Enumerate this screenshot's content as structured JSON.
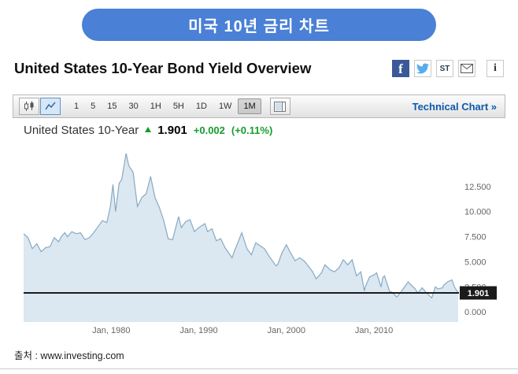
{
  "banner": {
    "title": "미국 10년 금리 차트",
    "bg_color": "#4a80d5"
  },
  "header": {
    "title": "United States 10-Year Bond Yield Overview",
    "icons": {
      "facebook_glyph": "f",
      "stocktwits_glyph": "ST",
      "info_glyph": "i"
    }
  },
  "toolbar": {
    "intervals": [
      "1",
      "5",
      "15",
      "30",
      "1H",
      "5H",
      "1D",
      "1W",
      "1M"
    ],
    "selected_interval": "1M",
    "technical_chart_label": "Technical Chart »"
  },
  "quote": {
    "name": "United States 10-Year",
    "last": "1.901",
    "change": "+0.002",
    "change_pct": "(+0.11%)",
    "direction": "up",
    "up_color": "#169d2c"
  },
  "chart_data": {
    "type": "area",
    "title": "United States 10-Year",
    "xlabel": "",
    "ylabel": "",
    "xlim": [
      1970,
      2019.7
    ],
    "ylim": [
      -1,
      16.8
    ],
    "x": [
      1970.0,
      1970.5,
      1971.0,
      1971.5,
      1972.0,
      1972.5,
      1973.0,
      1973.5,
      1974.0,
      1974.3,
      1974.7,
      1975.0,
      1975.5,
      1976.0,
      1976.5,
      1977.0,
      1977.5,
      1978.0,
      1978.5,
      1979.0,
      1979.5,
      1979.9,
      1980.2,
      1980.5,
      1980.9,
      1981.2,
      1981.7,
      1982.0,
      1982.5,
      1983.0,
      1983.5,
      1984.0,
      1984.5,
      1985.0,
      1985.5,
      1986.0,
      1986.5,
      1987.0,
      1987.7,
      1988.0,
      1988.5,
      1989.0,
      1989.5,
      1990.0,
      1990.7,
      1991.0,
      1991.5,
      1992.0,
      1992.5,
      1993.0,
      1993.8,
      1994.0,
      1994.9,
      1995.5,
      1996.0,
      1996.5,
      1997.0,
      1997.5,
      1998.0,
      1998.8,
      1999.0,
      1999.5,
      2000.0,
      2000.4,
      2001.0,
      2001.5,
      2002.0,
      2002.3,
      2003.0,
      2003.4,
      2004.0,
      2004.4,
      2005.0,
      2005.5,
      2006.0,
      2006.5,
      2007.0,
      2007.5,
      2008.0,
      2008.5,
      2008.9,
      2009.0,
      2009.5,
      2010.0,
      2010.3,
      2010.8,
      2011.0,
      2011.2,
      2011.8,
      2012.0,
      2012.6,
      2013.0,
      2013.9,
      2014.0,
      2014.7,
      2015.0,
      2015.5,
      2016.0,
      2016.6,
      2017.0,
      2017.3,
      2017.8,
      2018.0,
      2018.4,
      2018.9,
      2019.2,
      2019.6
    ],
    "y": [
      7.8,
      7.4,
      6.3,
      6.8,
      6.0,
      6.4,
      6.5,
      7.4,
      7.0,
      7.5,
      7.9,
      7.5,
      8.0,
      7.8,
      7.9,
      7.2,
      7.4,
      7.9,
      8.5,
      9.1,
      8.9,
      10.5,
      12.7,
      10.0,
      12.8,
      13.2,
      15.8,
      14.6,
      13.9,
      10.5,
      11.4,
      11.8,
      13.5,
      11.4,
      10.4,
      9.1,
      7.3,
      7.2,
      9.5,
      8.4,
      9.0,
      9.2,
      8.0,
      8.4,
      8.8,
      8.0,
      8.3,
      7.1,
      7.3,
      6.4,
      5.4,
      5.9,
      7.9,
      6.3,
      5.7,
      6.9,
      6.6,
      6.3,
      5.6,
      4.6,
      4.7,
      5.9,
      6.7,
      6.0,
      5.1,
      5.4,
      5.1,
      4.8,
      4.0,
      3.3,
      3.9,
      4.7,
      4.2,
      4.0,
      4.4,
      5.2,
      4.7,
      5.2,
      3.6,
      4.0,
      2.1,
      2.5,
      3.5,
      3.7,
      3.9,
      2.5,
      3.4,
      3.6,
      2.0,
      2.0,
      1.5,
      1.9,
      3.0,
      2.9,
      2.3,
      1.9,
      2.4,
      1.9,
      1.4,
      2.5,
      2.3,
      2.4,
      2.7,
      3.0,
      3.2,
      2.5,
      1.901
    ],
    "x_tick_values": [
      1980,
      1990,
      2000,
      2010
    ],
    "x_tick_labels": [
      "Jan, 1980",
      "Jan, 1990",
      "Jan, 2000",
      "Jan, 2010"
    ],
    "y_ticks": [
      0,
      2.5,
      5,
      7.5,
      10,
      12.5
    ],
    "y_tick_labels": [
      "0.000",
      "2.500",
      "5.000",
      "7.500",
      "10.000",
      "12.500"
    ],
    "last_value": 1.901,
    "last_label": "1.901",
    "grid": false,
    "legend": "none",
    "colors": {
      "area_fill": "#dbe7f1",
      "line": "#87aac3",
      "current_line": "#1b1b1b",
      "badge_bg": "#1b1b1b",
      "badge_text": "#ffffff",
      "tick_text": "#666666"
    }
  },
  "footer": {
    "source": "출처 : www.investing.com"
  }
}
